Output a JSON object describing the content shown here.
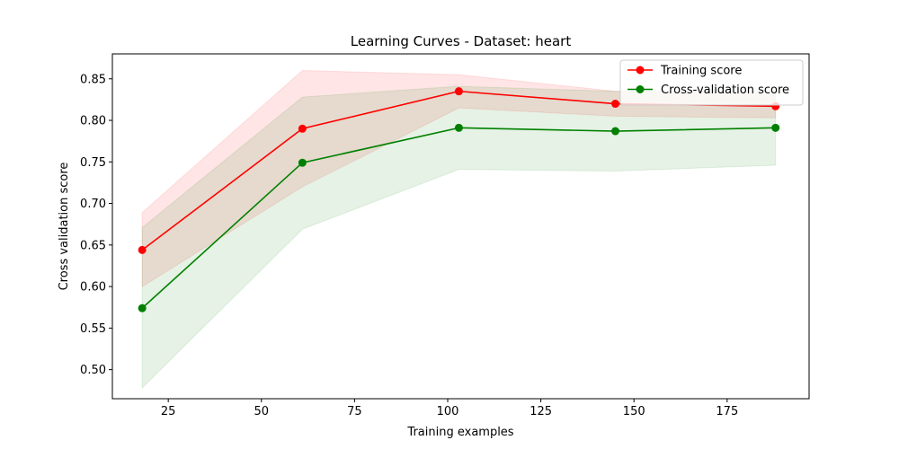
{
  "chart_data": {
    "type": "line",
    "title": "Learning Curves - Dataset: heart",
    "xlabel": "Training examples",
    "ylabel": "Cross validation score",
    "xlim": [
      10,
      197
    ],
    "ylim": [
      0.465,
      0.88
    ],
    "x_ticks": [
      25,
      50,
      75,
      100,
      125,
      150,
      175
    ],
    "y_ticks": [
      0.5,
      0.55,
      0.6,
      0.65,
      0.7,
      0.75,
      0.8,
      0.85
    ],
    "grid": false,
    "legend_position": "top-right",
    "x": [
      18,
      61,
      103,
      145,
      188
    ],
    "series": [
      {
        "name": "Training score",
        "color": "#ff0000",
        "values": [
          0.644,
          0.79,
          0.835,
          0.82,
          0.817
        ],
        "band_lower": [
          0.6,
          0.72,
          0.815,
          0.805,
          0.803
        ],
        "band_upper": [
          0.689,
          0.86,
          0.855,
          0.835,
          0.832
        ]
      },
      {
        "name": "Cross-validation score",
        "color": "#008000",
        "values": [
          0.574,
          0.749,
          0.791,
          0.787,
          0.791
        ],
        "band_lower": [
          0.478,
          0.669,
          0.741,
          0.739,
          0.746
        ],
        "band_upper": [
          0.671,
          0.828,
          0.841,
          0.835,
          0.836
        ]
      }
    ]
  }
}
